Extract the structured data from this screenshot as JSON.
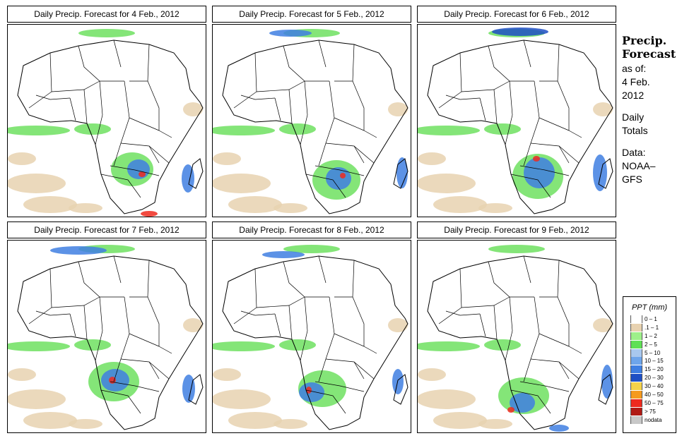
{
  "panels": [
    {
      "title": "Daily Precip. Forecast for  4 Feb., 2012",
      "day": 4
    },
    {
      "title": "Daily Precip. Forecast for  5 Feb., 2012",
      "day": 5
    },
    {
      "title": "Daily Precip. Forecast for  6 Feb., 2012",
      "day": 6
    },
    {
      "title": "Daily Precip. Forecast for  7 Feb., 2012",
      "day": 7
    },
    {
      "title": "Daily Precip. Forecast for  8 Feb., 2012",
      "day": 8
    },
    {
      "title": "Daily Precip. Forecast for  9 Feb., 2012",
      "day": 9
    }
  ],
  "sidebar": {
    "heading_1": "Precip.",
    "heading_2": "Forecast",
    "as_of": "as of:",
    "date_1": "4 Feb.",
    "date_2": "2012",
    "totals_1": "Daily",
    "totals_2": "Totals",
    "data_1": "Data:",
    "data_2": "NOAA–",
    "data_3": "GFS"
  },
  "legend": {
    "title": "PPT (mm)",
    "items": [
      {
        "label": "0 – 1",
        "color": "#ffffff"
      },
      {
        "label": ".1 – 1",
        "color": "#e8d2b0"
      },
      {
        "label": "1 – 2",
        "color": "#9ef08a"
      },
      {
        "label": "2 – 5",
        "color": "#5fe055"
      },
      {
        "label": "5 – 10",
        "color": "#a8c8ee"
      },
      {
        "label": "10 – 15",
        "color": "#6ea5ea"
      },
      {
        "label": "15 – 20",
        "color": "#3f7fe2"
      },
      {
        "label": "20 – 30",
        "color": "#1e4fc4"
      },
      {
        "label": "30 – 40",
        "color": "#f5d24a"
      },
      {
        "label": "40 – 50",
        "color": "#f59a1e"
      },
      {
        "label": "50 – 75",
        "color": "#ee2a1e"
      },
      {
        "label": "> 75",
        "color": "#b01a14"
      },
      {
        "label": "nodata",
        "color": "#c8c8c8"
      }
    ]
  },
  "map_colors": {
    "land_outline": "#000000",
    "light_precip": "#e8d2b0",
    "green": "#6ee060",
    "blue": "#3f7fe2",
    "dark_blue": "#1e4fc4",
    "red": "#ee2a1e"
  }
}
